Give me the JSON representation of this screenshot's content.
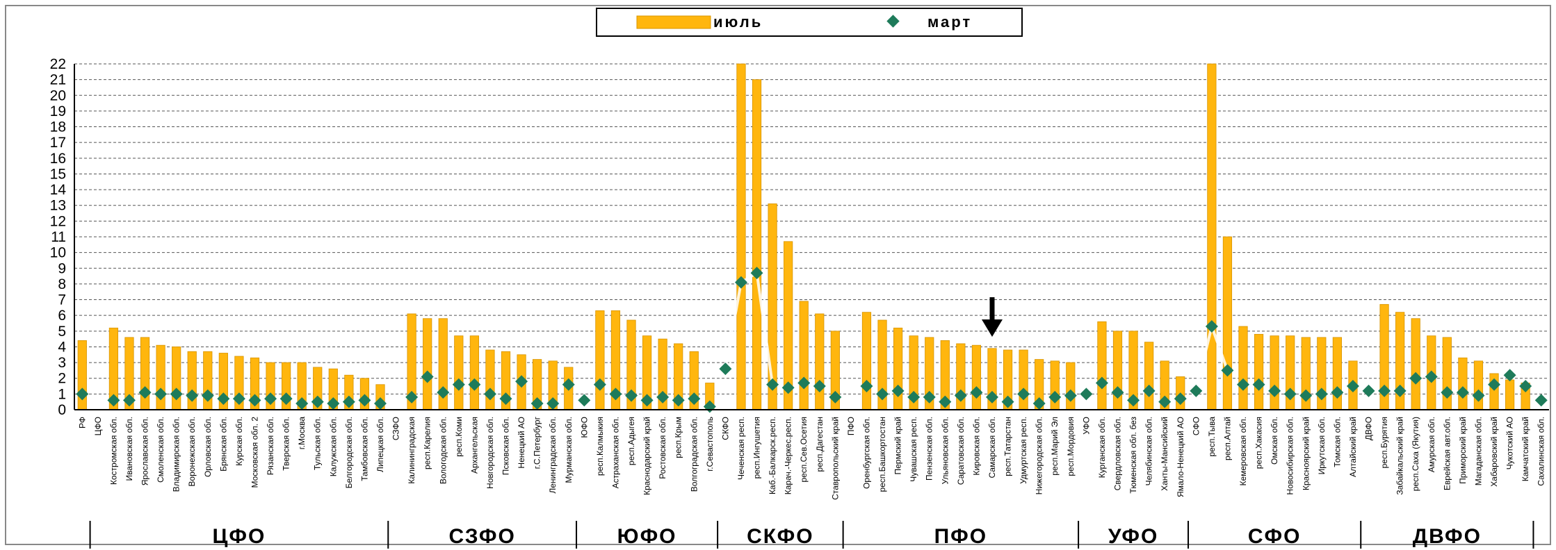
{
  "chart_data": {
    "type": "bar",
    "title": "",
    "xlabel": "",
    "ylabel": "",
    "ylim": [
      0,
      22
    ],
    "yticks": [
      0,
      1,
      2,
      3,
      4,
      5,
      6,
      7,
      8,
      9,
      10,
      11,
      12,
      13,
      14,
      15,
      16,
      17,
      18,
      19,
      20,
      21,
      22
    ],
    "grid": true,
    "legend_position": "top-center",
    "legend": [
      {
        "label": "июль",
        "kind": "bar"
      },
      {
        "label": "март",
        "kind": "marker"
      }
    ],
    "colors": {
      "bar": "#FFB60E",
      "bar_edge": "#D89400",
      "marker": "#1E7B5A",
      "grid": "#555555",
      "arrow": "#000000"
    },
    "annotation_arrow_category": "Самарская обл.",
    "categories": [
      "РФ",
      "ЦФО",
      "Костромская обл.",
      "Ивановская обл.",
      "Ярославская обл.",
      "Смоленская обл.",
      "Владимирская обл.",
      "Воронежская обл.",
      "Орловская обл.",
      "Брянская обл.",
      "Курская обл.",
      "Московская обл. 2",
      "Рязанская обл.",
      "Тверская обл.",
      "г.Москва",
      "Тульская обл.",
      "Калужская обл.",
      "Белгородская обл.",
      "Тамбовская обл.",
      "Липецкая обл.",
      "СЗФО",
      "Калининградская",
      "респ.Карелия",
      "Вологодская обл.",
      "респ.Коми",
      "Архангельская",
      "Новгородская обл.",
      "Псковская обл.",
      "Ненецкий АО",
      "г.С.Петербург",
      "Ленинградская обл.",
      "Мурманская обл.",
      "ЮФО",
      "респ.Калмыкия",
      "Астраханская обл.",
      "респ.Адыгея",
      "Краснодарский край",
      "Ростовская обл.",
      "респ.Крым",
      "Волгоградская обл.",
      "г.Севастополь",
      "СКФО",
      "Чеченская респ.",
      "респ.Ингушетия",
      "Каб.-Балкарск.респ.",
      "Карач.-Черкес.респ.",
      "респ.Сев.Осетия",
      "респ.Дагестан",
      "Ставропольский край",
      "ПФО",
      "Оренбургская обл.",
      "респ.Башкортостан",
      "Пермский край",
      "Чувашская респ.",
      "Пензенская обл.",
      "Ульяновская обл.",
      "Саратовская обл.",
      "Кировская обл.",
      "Самарская обл.",
      "респ.Татарстан",
      "Удмуртская респ.",
      "Нижегородская обл.",
      "респ.Марий Эл",
      "респ.Мордовия",
      "УФО",
      "Курганская обл.",
      "Свердловская обл.",
      "Тюменская обл. без",
      "Челябинская обл.",
      "Ханты-Мансийский",
      "Ямало-Ненецкий АО",
      "СФО",
      "респ.Тыва",
      "респ.Алтай",
      "Кемеровская обл.",
      "респ.Хакасия",
      "Омская обл.",
      "Новосибирская обл.",
      "Красноярский край",
      "Иркутская обл.",
      "Томская обл.",
      "Алтайский край",
      "ДВФО",
      "респ.Бурятия",
      "Забайкальский край",
      "респ.Саха (Якутия)",
      "Амурская обл.",
      "Еврейская авт.обл.",
      "Приморский край",
      "Магаданская обл.",
      "Хабаровский край",
      "Чукотский АО",
      "Камчатский край",
      "Сахалинская обл."
    ],
    "series": [
      {
        "name": "июль",
        "values": [
          4.4,
          null,
          5.2,
          4.6,
          4.6,
          4.1,
          4.0,
          3.7,
          3.7,
          3.6,
          3.4,
          3.3,
          3.0,
          3.0,
          3.0,
          2.7,
          2.6,
          2.2,
          2.0,
          1.6,
          null,
          6.1,
          5.8,
          5.8,
          4.7,
          4.7,
          3.8,
          3.7,
          3.5,
          3.2,
          3.1,
          2.7,
          null,
          6.3,
          6.3,
          5.7,
          4.7,
          4.5,
          4.2,
          3.7,
          1.7,
          null,
          22,
          21,
          13.1,
          10.7,
          6.9,
          6.1,
          5.0,
          null,
          6.2,
          5.7,
          5.2,
          4.7,
          4.6,
          4.4,
          4.2,
          4.1,
          3.9,
          3.8,
          3.8,
          3.2,
          3.1,
          3.0,
          null,
          5.6,
          5.0,
          5.0,
          4.3,
          3.1,
          2.1,
          null,
          22,
          11,
          5.3,
          4.8,
          4.7,
          4.7,
          4.6,
          4.6,
          4.6,
          3.1,
          null,
          6.7,
          6.2,
          5.8,
          4.7,
          4.6,
          3.3,
          3.1,
          2.3,
          1.9,
          1.7,
          null
        ]
      },
      {
        "name": "март",
        "values": [
          1.0,
          null,
          0.6,
          0.6,
          1.1,
          1.0,
          1.0,
          0.9,
          0.9,
          0.7,
          0.7,
          0.6,
          0.7,
          0.7,
          0.4,
          0.5,
          0.4,
          0.5,
          0.6,
          0.4,
          null,
          0.8,
          2.1,
          1.1,
          1.6,
          1.6,
          1.0,
          0.7,
          1.8,
          0.4,
          0.4,
          1.6,
          0.6,
          1.6,
          1.0,
          0.9,
          0.6,
          0.8,
          0.6,
          0.7,
          0.2,
          2.6,
          8.1,
          8.7,
          1.6,
          1.4,
          1.7,
          1.5,
          0.8,
          null,
          1.5,
          1.0,
          1.2,
          0.8,
          0.8,
          0.5,
          0.9,
          1.1,
          0.8,
          0.5,
          1.0,
          0.4,
          0.8,
          0.9,
          1.0,
          1.7,
          1.1,
          0.6,
          1.2,
          0.5,
          0.7,
          1.2,
          5.3,
          2.5,
          1.6,
          1.6,
          1.2,
          1.0,
          0.9,
          1.0,
          1.1,
          1.5,
          1.2,
          1.2,
          1.2,
          2.0,
          2.1,
          1.1,
          1.1,
          0.9,
          1.6,
          2.2,
          1.5,
          0.6
        ]
      }
    ],
    "groups": [
      {
        "label": "ЦФО",
        "from": 1,
        "to": 20
      },
      {
        "label": "СЗФО",
        "from": 20,
        "to": 32
      },
      {
        "label": "ЮФО",
        "from": 32,
        "to": 41
      },
      {
        "label": "СКФО",
        "from": 41,
        "to": 49
      },
      {
        "label": "ПФО",
        "from": 49,
        "to": 64
      },
      {
        "label": "УФО",
        "from": 64,
        "to": 71
      },
      {
        "label": "СФО",
        "from": 71,
        "to": 82
      },
      {
        "label": "ДВФО",
        "from": 82,
        "to": 93
      }
    ]
  }
}
